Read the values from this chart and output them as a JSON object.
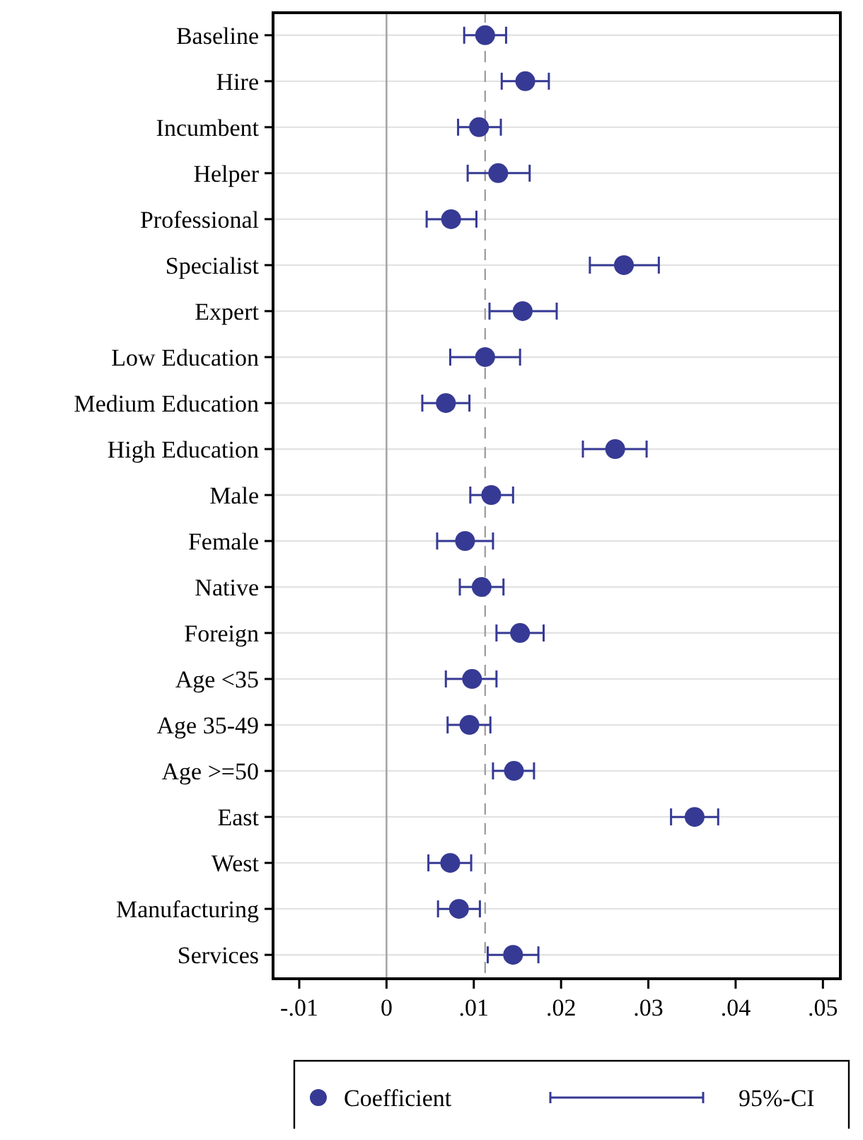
{
  "chart_data": {
    "type": "scatter",
    "orientation": "horizontal",
    "categories": [
      "Baseline",
      "Hire",
      "Incumbent",
      "Helper",
      "Professional",
      "Specialist",
      "Expert",
      "Low Education",
      "Medium Education",
      "High Education",
      "Male",
      "Female",
      "Native",
      "Foreign",
      "Age <35",
      "Age 35-49",
      "Age >=50",
      "East",
      "West",
      "Manufacturing",
      "Services"
    ],
    "series": [
      {
        "name": "Coefficient",
        "color": "#363a94",
        "values": [
          0.0113,
          0.0159,
          0.0106,
          0.0128,
          0.0074,
          0.0272,
          0.0156,
          0.0113,
          0.0068,
          0.0262,
          0.012,
          0.009,
          0.0109,
          0.0153,
          0.0098,
          0.0095,
          0.0146,
          0.0353,
          0.0073,
          0.0083,
          0.0145
        ],
        "errors": [
          [
            0.0089,
            0.0137
          ],
          [
            0.0132,
            0.0186
          ],
          [
            0.0082,
            0.0131
          ],
          [
            0.0093,
            0.0164
          ],
          [
            0.0046,
            0.0103
          ],
          [
            0.0233,
            0.0312
          ],
          [
            0.0118,
            0.0195
          ],
          [
            0.0073,
            0.0153
          ],
          [
            0.0041,
            0.0095
          ],
          [
            0.0225,
            0.0298
          ],
          [
            0.0096,
            0.0145
          ],
          [
            0.0058,
            0.0122
          ],
          [
            0.0084,
            0.0134
          ],
          [
            0.0126,
            0.018
          ],
          [
            0.0068,
            0.0126
          ],
          [
            0.007,
            0.0119
          ],
          [
            0.0122,
            0.0169
          ],
          [
            0.0326,
            0.038
          ],
          [
            0.0048,
            0.0097
          ],
          [
            0.0059,
            0.0107
          ],
          [
            0.0116,
            0.0174
          ]
        ]
      }
    ],
    "xlim": [
      -0.013,
      0.052
    ],
    "xticks": [
      {
        "value": -0.01,
        "label": "-.01"
      },
      0,
      {
        "value": 0.01,
        "label": ".01"
      },
      {
        "value": 0.02,
        "label": ".02"
      },
      {
        "value": 0.03,
        "label": ".03"
      },
      {
        "value": 0.04,
        "label": ".04"
      },
      {
        "value": 0.05,
        "label": ".05"
      }
    ],
    "ref_lines": [
      {
        "axis": "x",
        "value": 0,
        "color": "#a0a0a0",
        "line_style": "solid"
      },
      {
        "axis": "x",
        "value": 0.0113,
        "color": "#a0a0a0",
        "line_style": "dashed"
      }
    ],
    "annotations": [
      "95%-CI"
    ],
    "grid": "y",
    "legend": "bottom",
    "marker": "circle"
  }
}
